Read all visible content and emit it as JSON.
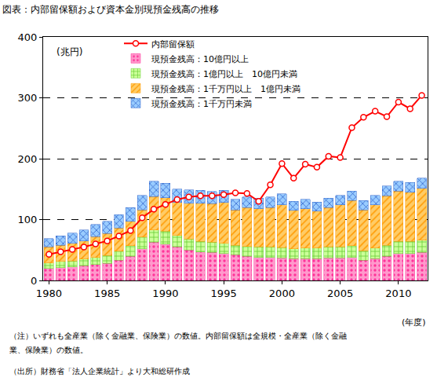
{
  "chart_data": {
    "type": "bar",
    "stacked": true,
    "title": "図表：内部留保額および資本金別現預金残高の推移",
    "y_label": "(兆円)",
    "x_label": "(年度)",
    "annotations": [
      "（注）いずれも全産業（除く金融業、保険業）の数値。内部留保額は全規模・全産業（除く金融",
      "業、保険業）の数値。",
      "（出所）財務省「法人企業統計」より大和総研作成"
    ],
    "x": [
      1980,
      1981,
      1982,
      1983,
      1984,
      1985,
      1986,
      1987,
      1988,
      1989,
      1990,
      1991,
      1992,
      1993,
      1994,
      1995,
      1996,
      1997,
      1998,
      1999,
      2000,
      2001,
      2002,
      2003,
      2004,
      2005,
      2006,
      2007,
      2008,
      2009,
      2010,
      2011,
      2012
    ],
    "xlim": [
      1979.5,
      2012.5
    ],
    "xticks": [
      1980,
      1985,
      1990,
      1995,
      2000,
      2005,
      2010
    ],
    "ylim": [
      0,
      400
    ],
    "yticks": [
      0,
      100,
      200,
      300,
      400
    ],
    "grid": true,
    "legend": "top-left",
    "series": [
      {
        "name": "現預金残高：1千万円未満",
        "type": "bar",
        "color": "#99ccff",
        "values": [
          14,
          15,
          17,
          18,
          20,
          20,
          22,
          23,
          24,
          25,
          24,
          22,
          22,
          21,
          20,
          20,
          17,
          17,
          17,
          17,
          18,
          15,
          15,
          15,
          15,
          16,
          16,
          15,
          16,
          16,
          16,
          16,
          17
        ]
      },
      {
        "name": "現預金残高：1千万円以上　1億円未満",
        "type": "bar",
        "color": "#ffcc66",
        "values": [
          26,
          27,
          29,
          30,
          34,
          36,
          38,
          40,
          45,
          55,
          55,
          54,
          59,
          63,
          63,
          67,
          58,
          64,
          63,
          65,
          70,
          63,
          65,
          61,
          65,
          69,
          74,
          67,
          71,
          81,
          83,
          81,
          85
        ]
      },
      {
        "name": "現預金残高：1億円以上　10億円未満",
        "type": "bar",
        "color": "#ccff99",
        "values": [
          9,
          10,
          10,
          11,
          12,
          13,
          15,
          17,
          19,
          20,
          21,
          19,
          18,
          17,
          17,
          17,
          16,
          16,
          17,
          17,
          17,
          16,
          17,
          17,
          18,
          18,
          19,
          16,
          17,
          18,
          20,
          20,
          20
        ]
      },
      {
        "name": "現預金残高：10億円以上",
        "type": "bar",
        "color": "#ff99cc",
        "values": [
          20,
          21,
          22,
          24,
          26,
          28,
          33,
          40,
          52,
          63,
          60,
          55,
          50,
          47,
          46,
          44,
          42,
          40,
          38,
          38,
          37,
          36,
          36,
          36,
          37,
          37,
          38,
          33,
          36,
          40,
          44,
          44,
          46
        ]
      },
      {
        "name": "内部留保額",
        "type": "line",
        "color": "#ff0000",
        "marker": "circle",
        "line_style": "solid",
        "values": [
          43,
          47,
          51,
          55,
          60,
          65,
          73,
          82,
          103,
          117,
          125,
          133,
          137,
          139,
          139,
          141,
          144,
          143,
          130,
          157,
          192,
          168,
          191,
          186,
          204,
          202,
          251,
          268,
          278,
          269,
          293,
          282,
          304
        ]
      }
    ]
  }
}
